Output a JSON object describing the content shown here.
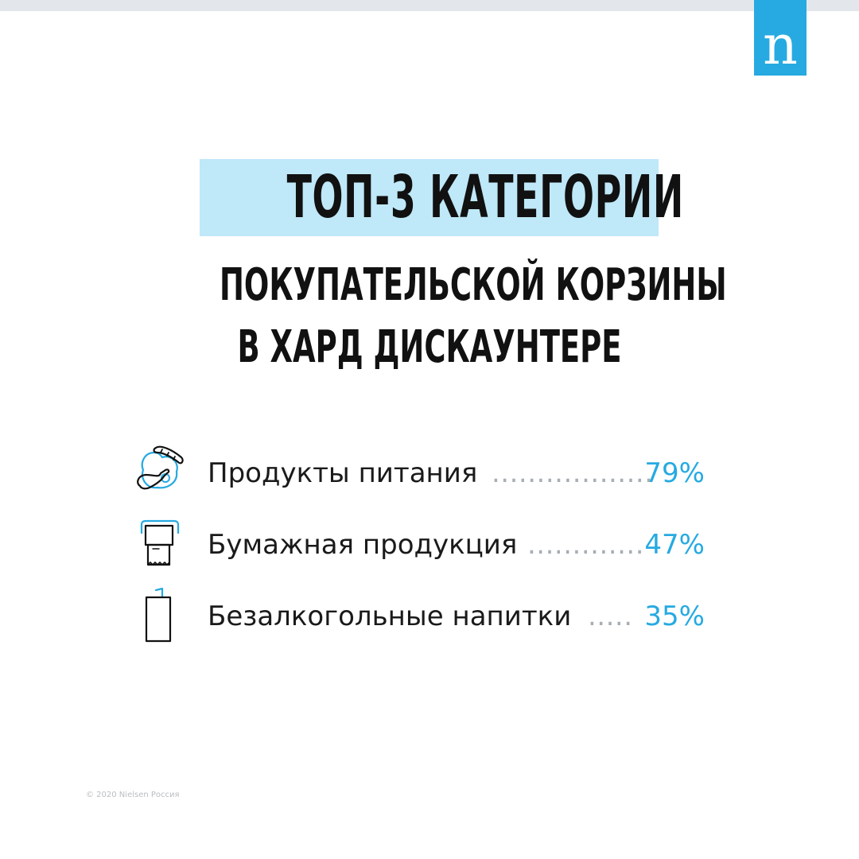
{
  "brand": {
    "logo_letter": "n",
    "accent_color": "#26aae1",
    "highlight_color": "#bfe8f8",
    "top_bar_color": "#e3e7eb"
  },
  "title": {
    "main": "ТОП-3 КАТЕГОРИИ",
    "sub_line1": "ПОКУПАТЕЛЬСКОЙ КОРЗИНЫ",
    "sub_line2": "В ХАРД ДИСКАУНТЕРЕ"
  },
  "categories": [
    {
      "icon": "food-icon",
      "label": "Продукты питания",
      "dots": "..................",
      "value": "79%"
    },
    {
      "icon": "paper-roll-icon",
      "label": "Бумажная продукция",
      "dots": ".............",
      "value": "47%"
    },
    {
      "icon": "drink-carton-icon",
      "label": "Безалкогольные напитки",
      "dots": ".....",
      "value": "35%"
    }
  ],
  "footer": {
    "copyright": "© 2020 Nielsen Россия"
  }
}
